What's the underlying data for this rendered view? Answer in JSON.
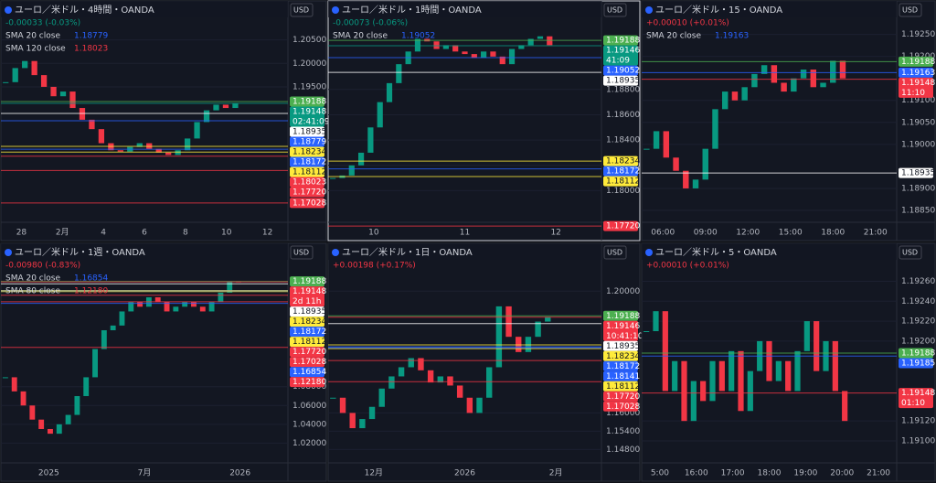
{
  "panels": [
    {
      "title": "ユーロ／米ドル・4時間・OANDA",
      "change": "-0.00033 (-0.03%)",
      "change_color": "#089981",
      "currency": "USD",
      "smas": [
        {
          "name": "SMA 20 close",
          "value": "1.18779",
          "color": "#2962ff"
        },
        {
          "name": "SMA 120 close",
          "value": "1.18023",
          "color": "#f23645"
        }
      ],
      "ylim": [
        1.16616,
        1.2133
      ],
      "yticks": [
        {
          "value": 1.205,
          "label": "1.20500"
        },
        {
          "value": 1.2,
          "label": "1.20000"
        },
        {
          "value": 1.195,
          "label": "1.19500"
        }
      ],
      "xlabels": [
        "28",
        "2月",
        "4",
        "6",
        "8",
        "10",
        "12"
      ],
      "closes": [
        1.196,
        1.199,
        1.2005,
        1.1975,
        1.195,
        1.193,
        1.194,
        1.1905,
        1.188,
        1.186,
        1.183,
        1.1815,
        1.1812,
        1.1822,
        1.183,
        1.1818,
        1.181,
        1.1805,
        1.1815,
        1.184,
        1.1875,
        1.19,
        1.1912,
        1.1905,
        1.1915
      ],
      "tags": [
        {
          "price": {
            "value": 1.19188,
            "label": "1.19188"
          },
          "color": "#4caf50"
        },
        {
          "price": {
            "value": 1.19148,
            "label": "1.19148"
          },
          "color": "#089981",
          "sub": "02:41:09"
        },
        {
          "price": {
            "value": 1.18935,
            "label": "1.18935"
          },
          "color": "#ffffff"
        },
        {
          "price": {
            "value": 1.18779,
            "label": "1.18779"
          },
          "color": "#2962ff"
        },
        {
          "price": {
            "value": 1.18234,
            "label": "1.18234"
          },
          "color": "#ffeb3b"
        },
        {
          "price": {
            "value": 1.18172,
            "label": "1.18172"
          },
          "color": "#2962ff"
        },
        {
          "price": {
            "value": 1.18112,
            "label": "1.18112"
          },
          "color": "#ffeb3b"
        },
        {
          "price": {
            "value": 1.18023,
            "label": "1.18023"
          },
          "color": "#f23645"
        },
        {
          "price": {
            "value": 1.1772,
            "label": "1.17720"
          },
          "color": "#f23645"
        },
        {
          "price": {
            "value": 1.17028,
            "label": "1.17028"
          },
          "color": "#f23645"
        }
      ]
    },
    {
      "title": "ユーロ／米ドル・1時間・OANDA",
      "change": "-0.00073 (-0.06%)",
      "change_color": "#089981",
      "currency": "USD",
      "smas": [
        {
          "name": "SMA 20 close",
          "value": "1.19052",
          "color": "#2962ff"
        }
      ],
      "ylim": [
        1.1775,
        1.195
      ],
      "yticks": [
        {
          "value": 1.188,
          "label": "1.18800"
        },
        {
          "value": 1.186,
          "label": "1.18600"
        },
        {
          "value": 1.184,
          "label": "1.18400"
        },
        {
          "value": 1.182,
          "label": "1.18200"
        },
        {
          "value": 1.18,
          "label": "1.18000"
        }
      ],
      "xlabels": [
        "10",
        "11",
        "12"
      ],
      "closes": [
        1.181,
        1.1812,
        1.182,
        1.183,
        1.185,
        1.187,
        1.1885,
        1.19,
        1.191,
        1.192,
        1.1918,
        1.1912,
        1.1915,
        1.191,
        1.1908,
        1.1905,
        1.191,
        1.1906,
        1.19,
        1.1912,
        1.1915,
        1.192,
        1.1922,
        1.1915
      ],
      "tags": [
        {
          "price": {
            "value": 1.19188,
            "label": "1.19188"
          },
          "color": "#4caf50"
        },
        {
          "price": {
            "value": 1.19146,
            "label": "1.19146"
          },
          "color": "#089981",
          "sub": "41:09"
        },
        {
          "price": {
            "value": 1.19052,
            "label": "1.19052"
          },
          "color": "#2962ff"
        },
        {
          "price": {
            "value": 1.18935,
            "label": "1.18935"
          },
          "color": "#ffffff"
        },
        {
          "price": {
            "value": 1.18234,
            "label": "1.18234"
          },
          "color": "#ffeb3b"
        },
        {
          "price": {
            "value": 1.18172,
            "label": "1.18172"
          },
          "color": "#2962ff"
        },
        {
          "price": {
            "value": 1.18112,
            "label": "1.18112"
          },
          "color": "#ffeb3b"
        },
        {
          "price": {
            "value": 1.1772,
            "label": "1.17720"
          },
          "color": "#f23645"
        }
      ]
    },
    {
      "title": "ユーロ／米ドル・15・OANDA",
      "change": "+0.00010 (+0.01%)",
      "change_color": "#f23645",
      "currency": "USD",
      "smas": [
        {
          "name": "SMA 20 close",
          "value": "1.19163",
          "color": "#2962ff"
        }
      ],
      "ylim": [
        1.18823,
        1.19326
      ],
      "yticks": [
        {
          "value": 1.1925,
          "label": "1.19250"
        },
        {
          "value": 1.192,
          "label": "1.19200"
        },
        {
          "value": 1.191,
          "label": "1.19100"
        },
        {
          "value": 1.1905,
          "label": "1.19050"
        },
        {
          "value": 1.19,
          "label": "1.19000"
        },
        {
          "value": 1.189,
          "label": "1.18900"
        },
        {
          "value": 1.1885,
          "label": "1.18850"
        }
      ],
      "xlabels": [
        "06:00",
        "09:00",
        "12:00",
        "15:00",
        "18:00",
        "21:00"
      ],
      "closes": [
        1.1899,
        1.1903,
        1.1897,
        1.1894,
        1.189,
        1.1892,
        1.1899,
        1.1908,
        1.1912,
        1.191,
        1.1913,
        1.1916,
        1.1918,
        1.1914,
        1.1912,
        1.1915,
        1.1917,
        1.1913,
        1.1914,
        1.1919,
        1.1915
      ],
      "tags": [
        {
          "price": {
            "value": 1.19188,
            "label": "1.19188"
          },
          "color": "#4caf50"
        },
        {
          "price": {
            "value": 1.19163,
            "label": "1.19163"
          },
          "color": "#2962ff"
        },
        {
          "price": {
            "value": 1.19148,
            "label": "1.19148"
          },
          "color": "#f23645",
          "sub": "11:10"
        },
        {
          "price": {
            "value": 1.18935,
            "label": "1.18935"
          },
          "color": "#ffffff"
        }
      ]
    },
    {
      "title": "ユーロ／米ドル・1週・OANDA",
      "change": "-0.00980 (-0.83%)",
      "change_color": "#f23645",
      "currency": "USD",
      "smas": [
        {
          "name": "SMA 20 close",
          "value": "1.16854",
          "color": "#2962ff"
        },
        {
          "name": "SMA 80 close",
          "value": "1.12180",
          "color": "#f23645"
        }
      ],
      "ylim": [
        0.999,
        1.2324
      ],
      "yticks": [
        {
          "value": 1.08,
          "label": "1.08000"
        },
        {
          "value": 1.06,
          "label": "1.06000"
        },
        {
          "value": 1.04,
          "label": "1.04000"
        },
        {
          "value": 1.02,
          "label": "1.02000"
        }
      ],
      "xlabels": [
        "2025",
        "7月",
        "2026"
      ],
      "closes": [
        1.09,
        1.075,
        1.06,
        1.045,
        1.035,
        1.03,
        1.04,
        1.05,
        1.07,
        1.09,
        1.12,
        1.14,
        1.145,
        1.16,
        1.17,
        1.165,
        1.175,
        1.17,
        1.16,
        1.165,
        1.17,
        1.165,
        1.16,
        1.17,
        1.18,
        1.1919,
        1.1915
      ],
      "tags": [
        {
          "price": {
            "value": 1.19188,
            "label": "1.19188"
          },
          "color": "#4caf50"
        },
        {
          "price": {
            "value": 1.19148,
            "label": "1.19148"
          },
          "color": "#f23645",
          "sub": "2d 11h"
        },
        {
          "price": {
            "value": 1.18935,
            "label": "1.18935"
          },
          "color": "#ffffff"
        },
        {
          "price": {
            "value": 1.18234,
            "label": "1.18234"
          },
          "color": "#ffeb3b"
        },
        {
          "price": {
            "value": 1.18172,
            "label": "1.18172"
          },
          "color": "#2962ff"
        },
        {
          "price": {
            "value": 1.18112,
            "label": "1.18112"
          },
          "color": "#ffeb3b"
        },
        {
          "price": {
            "value": 1.1772,
            "label": "1.17720"
          },
          "color": "#f23645"
        },
        {
          "price": {
            "value": 1.17028,
            "label": "1.17028"
          },
          "color": "#f23645"
        },
        {
          "price": {
            "value": 1.16854,
            "label": "1.16854"
          },
          "color": "#2962ff"
        },
        {
          "price": {
            "value": 1.1218,
            "label": "1.12180"
          },
          "color": "#f23645"
        }
      ]
    },
    {
      "title": "ユーロ／米ドル・1日・OANDA",
      "change": "+0.00198 (+0.17%)",
      "change_color": "#f23645",
      "currency": "USD",
      "smas": [],
      "ylim": [
        1.1436,
        1.2157
      ],
      "yticks": [
        {
          "value": 1.2,
          "label": "1.20000"
        },
        {
          "value": 1.16,
          "label": "1.16000"
        },
        {
          "value": 1.154,
          "label": "1.15400"
        },
        {
          "value": 1.148,
          "label": "1.14800"
        }
      ],
      "xlabels": [
        "12月",
        "2026",
        "2月"
      ],
      "closes": [
        1.165,
        1.16,
        1.155,
        1.158,
        1.162,
        1.168,
        1.172,
        1.175,
        1.178,
        1.174,
        1.17,
        1.172,
        1.169,
        1.165,
        1.16,
        1.165,
        1.175,
        1.195,
        1.185,
        1.18,
        1.185,
        1.19,
        1.1915
      ],
      "tags": [
        {
          "price": {
            "value": 1.19188,
            "label": "1.19188"
          },
          "color": "#4caf50"
        },
        {
          "price": {
            "value": 1.19146,
            "label": "1.19146"
          },
          "color": "#f23645",
          "sub": "10:41:10"
        },
        {
          "price": {
            "value": 1.18935,
            "label": "1.18935"
          },
          "color": "#ffffff"
        },
        {
          "price": {
            "value": 1.18234,
            "label": "1.18234"
          },
          "color": "#ffeb3b"
        },
        {
          "price": {
            "value": 1.18172,
            "label": "1.18172"
          },
          "color": "#2962ff"
        },
        {
          "price": {
            "value": 1.18141,
            "label": "1.18141"
          },
          "color": "#2962ff"
        },
        {
          "price": {
            "value": 1.18112,
            "label": "1.18112"
          },
          "color": "#ffeb3b"
        },
        {
          "price": {
            "value": 1.1772,
            "label": "1.17720"
          },
          "color": "#f23645"
        },
        {
          "price": {
            "value": 1.17028,
            "label": "1.17028"
          },
          "color": "#f23645"
        }
      ]
    },
    {
      "title": "ユーロ／米ドル・5・OANDA",
      "change": "+0.00010 (+0.01%)",
      "change_color": "#f23645",
      "currency": "USD",
      "smas": [],
      "ylim": [
        1.19078,
        1.19298
      ],
      "yticks": [
        {
          "value": 1.1926,
          "label": "1.19260"
        },
        {
          "value": 1.1924,
          "label": "1.19240"
        },
        {
          "value": 1.1922,
          "label": "1.19220"
        },
        {
          "value": 1.192,
          "label": "1.19200"
        },
        {
          "value": 1.1912,
          "label": "1.19120"
        },
        {
          "value": 1.191,
          "label": "1.19100"
        }
      ],
      "xlabels": [
        "5:00",
        "16:00",
        "17:00",
        "18:00",
        "19:00",
        "20:00",
        "21:00"
      ],
      "closes": [
        1.1921,
        1.1923,
        1.1915,
        1.1918,
        1.1912,
        1.1916,
        1.1914,
        1.1918,
        1.1915,
        1.1919,
        1.1913,
        1.1917,
        1.192,
        1.1916,
        1.1918,
        1.1915,
        1.1919,
        1.1922,
        1.1917,
        1.192,
        1.1915,
        1.1912
      ],
      "tags": [
        {
          "price": {
            "value": 1.19188,
            "label": "1.19188"
          },
          "color": "#4caf50"
        },
        {
          "price": {
            "value": 1.19185,
            "label": "1.19185"
          },
          "color": "#2962ff"
        },
        {
          "price": {
            "value": 1.19148,
            "label": "1.19148"
          },
          "color": "#f23645",
          "sub": "01:10"
        }
      ]
    }
  ]
}
